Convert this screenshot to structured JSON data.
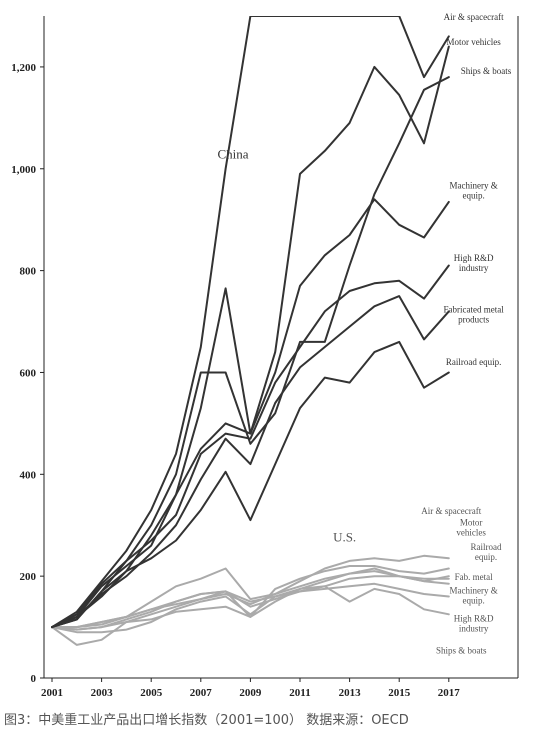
{
  "caption": "图3：中美重工业产品出口增长指数（2001=100） 数据来源：OECD",
  "chart_data": {
    "type": "line",
    "ylim": [
      0,
      1300
    ],
    "xlim": [
      2001,
      2018
    ],
    "y_ticks": [
      0,
      200,
      400,
      600,
      800,
      1000,
      1200
    ],
    "y_tick_labels": [
      "0",
      "200",
      "400",
      "600",
      "800",
      "1,000",
      "1,200"
    ],
    "x_ticks": [
      2001,
      2003,
      2005,
      2007,
      2009,
      2011,
      2013,
      2015,
      2017
    ],
    "x_tick_labels": [
      "2001",
      "2003",
      "2005",
      "2007",
      "2009",
      "2011",
      "2013",
      "2015",
      "2017"
    ],
    "grid": false,
    "x": [
      2001,
      2002,
      2003,
      2004,
      2005,
      2006,
      2007,
      2008,
      2009,
      2010,
      2011,
      2012,
      2013,
      2014,
      2015,
      2016,
      2017
    ],
    "groups": [
      {
        "label": "China",
        "color": "#333333",
        "series": [
          {
            "name": "Air & spacecraft",
            "values": [
              100,
              130,
              190,
              250,
              330,
              440,
              650,
              1000,
              1300,
              1300,
              1300,
              1300,
              1300,
              1300,
              1300,
              1180,
              1260
            ]
          },
          {
            "name": "Motor vehicles",
            "values": [
              100,
              120,
              160,
              210,
              280,
              360,
              530,
              765,
              480,
              640,
              990,
              1035,
              1090,
              1200,
              1145,
              1050,
              1240
            ]
          },
          {
            "name": "Ships & boats",
            "values": [
              100,
              115,
              170,
              230,
              300,
              400,
              600,
              600,
              460,
              520,
              660,
              660,
              810,
              950,
              1050,
              1155,
              1180
            ]
          },
          {
            "name": "Machinery & equip.",
            "values": [
              100,
              120,
              180,
              220,
              260,
              360,
              450,
              500,
              480,
              600,
              770,
              830,
              870,
              940,
              890,
              865,
              935
            ]
          },
          {
            "name": "High R&D industry",
            "values": [
              100,
              125,
              185,
              230,
              270,
              320,
              440,
              480,
              470,
              580,
              650,
              720,
              760,
              775,
              780,
              745,
              810
            ]
          },
          {
            "name": "Fabricated metal products",
            "values": [
              100,
              120,
              165,
              200,
              245,
              300,
              390,
              470,
              420,
              540,
              610,
              650,
              690,
              730,
              750,
              665,
              720
            ]
          },
          {
            "name": "Railroad equip.",
            "values": [
              100,
              115,
              170,
              210,
              235,
              270,
              330,
              405,
              310,
              420,
              530,
              590,
              580,
              640,
              660,
              570,
              600
            ]
          }
        ]
      },
      {
        "label": "U.S.",
        "color": "#aaaaaa",
        "series": [
          {
            "name": "Air & spacecraft",
            "values": [
              100,
              100,
              105,
              120,
              150,
              180,
              195,
              215,
              155,
              165,
              190,
              215,
              230,
              235,
              230,
              240,
              235
            ]
          },
          {
            "name": "Motor vehicles",
            "values": [
              100,
              95,
              100,
              115,
              130,
              150,
              165,
              170,
              120,
              175,
              195,
              210,
              220,
              220,
              210,
              205,
              215
            ]
          },
          {
            "name": "Railroad equip.",
            "values": [
              100,
              90,
              90,
              95,
              110,
              135,
              150,
              160,
              125,
              160,
              175,
              190,
              205,
              215,
              200,
              190,
              200
            ]
          },
          {
            "name": "Fab. metal",
            "values": [
              100,
              100,
              110,
              120,
              135,
              145,
              155,
              170,
              140,
              155,
              170,
              180,
              195,
              200,
              200,
              195,
              195
            ]
          },
          {
            "name": "Machinery & equip.",
            "values": [
              100,
              95,
              100,
              110,
              125,
              140,
              155,
              165,
              145,
              165,
              180,
              195,
              205,
              210,
              200,
              190,
              185
            ]
          },
          {
            "name": "High R&D industry",
            "values": [
              100,
              100,
              110,
              120,
              135,
              150,
              165,
              170,
              150,
              160,
              170,
              175,
              180,
              185,
              175,
              165,
              160
            ]
          },
          {
            "name": "Ships & boats",
            "values": [
              100,
              65,
              75,
              110,
              115,
              130,
              135,
              140,
              120,
              150,
              175,
              180,
              150,
              175,
              165,
              135,
              125
            ]
          }
        ]
      }
    ],
    "annotations": [
      {
        "text": "China",
        "x": 2008.3,
        "y": 1020,
        "color": "#333333",
        "size": 13
      },
      {
        "text": "U.S.",
        "x": 2012.8,
        "y": 268,
        "color": "#555555",
        "size": 13
      }
    ],
    "end_labels": [
      {
        "lines": [
          "Air & spacecraft"
        ],
        "x": 2018.0,
        "y": 1292,
        "color": "#333333"
      },
      {
        "lines": [
          "Motor vehicles"
        ],
        "x": 2018.0,
        "y": 1243,
        "color": "#333333"
      },
      {
        "lines": [
          "Ships & boats"
        ],
        "x": 2018.5,
        "y": 1186,
        "color": "#333333"
      },
      {
        "lines": [
          "Machinery &",
          "equip."
        ],
        "x": 2018.0,
        "y": 961,
        "color": "#333333"
      },
      {
        "lines": [
          "High R&D",
          "industry"
        ],
        "x": 2018.0,
        "y": 819,
        "color": "#333333"
      },
      {
        "lines": [
          "Fabricated metal",
          "products"
        ],
        "x": 2018.0,
        "y": 718,
        "color": "#333333"
      },
      {
        "lines": [
          "Railroad equip."
        ],
        "x": 2018.0,
        "y": 615,
        "color": "#333333"
      },
      {
        "lines": [
          "Air & spacecraft"
        ],
        "x": 2017.1,
        "y": 322,
        "color": "#555555"
      },
      {
        "lines": [
          "Motor",
          "vehicles"
        ],
        "x": 2017.9,
        "y": 299,
        "color": "#555555"
      },
      {
        "lines": [
          "Railroad",
          "equip."
        ],
        "x": 2018.5,
        "y": 251,
        "color": "#555555"
      },
      {
        "lines": [
          "Fab. metal"
        ],
        "x": 2018.0,
        "y": 192,
        "color": "#555555"
      },
      {
        "lines": [
          "Machinery &",
          "equip."
        ],
        "x": 2018.0,
        "y": 166,
        "color": "#555555"
      },
      {
        "lines": [
          "High R&D",
          "industry"
        ],
        "x": 2018.0,
        "y": 111,
        "color": "#555555"
      },
      {
        "lines": [
          "Ships & boats"
        ],
        "x": 2017.5,
        "y": 48,
        "color": "#555555"
      }
    ]
  }
}
